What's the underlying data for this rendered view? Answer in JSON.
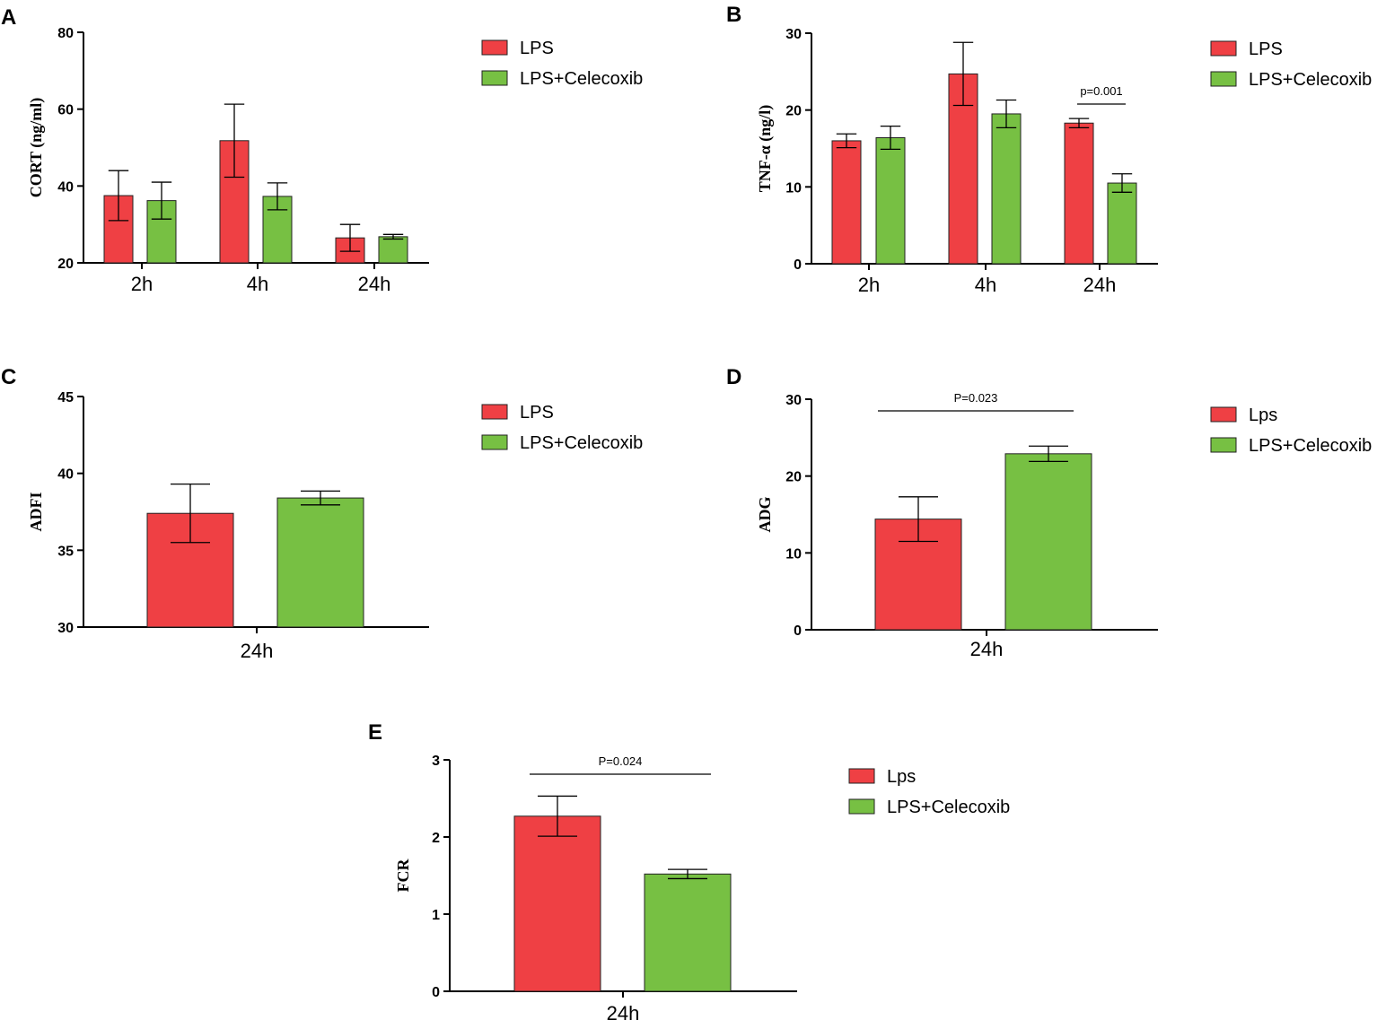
{
  "colors": {
    "lps": "#ef4044",
    "celecoxib": "#77c043"
  },
  "chart_data": [
    {
      "id": "A",
      "type": "bar",
      "panel_label": "A",
      "title": "",
      "xlabel": "",
      "ylabel": "CORT (ng/ml)",
      "ylim": [
        20,
        80
      ],
      "yticks": [
        "20",
        "40",
        "60",
        "80"
      ],
      "categories": [
        "2h",
        "4h",
        "24h"
      ],
      "series": [
        {
          "name": "LPS",
          "values": [
            37.5,
            51.8,
            26.5
          ],
          "errors": [
            6.5,
            9.5,
            3.5
          ]
        },
        {
          "name": "LPS+Celecoxib",
          "values": [
            36.2,
            37.3,
            26.8
          ],
          "errors": [
            4.8,
            3.5,
            0.6
          ]
        }
      ],
      "annotations": [],
      "legend": [
        "LPS",
        "LPS+Celecoxib"
      ]
    },
    {
      "id": "B",
      "type": "bar",
      "panel_label": "B",
      "title": "",
      "xlabel": "",
      "ylabel": "TNF-α (ng/l)",
      "ylim": [
        0,
        30
      ],
      "yticks": [
        "0",
        "10",
        "20",
        "30"
      ],
      "categories": [
        "2h",
        "4h",
        "24h"
      ],
      "series": [
        {
          "name": "LPS",
          "values": [
            16.0,
            24.7,
            18.3
          ],
          "errors": [
            0.9,
            4.1,
            0.6
          ]
        },
        {
          "name": "LPS+Celecoxib",
          "values": [
            16.4,
            19.5,
            10.5
          ],
          "errors": [
            1.5,
            1.8,
            1.2
          ]
        }
      ],
      "annotations": [
        {
          "text": "p=0.001",
          "category": 2
        }
      ],
      "legend": [
        "LPS",
        "LPS+Celecoxib"
      ]
    },
    {
      "id": "C",
      "type": "bar",
      "panel_label": "C",
      "title": "",
      "xlabel": "",
      "ylabel": "ADFI",
      "ylim": [
        30,
        45
      ],
      "yticks": [
        "30",
        "35",
        "40",
        "45"
      ],
      "categories": [
        "24h"
      ],
      "series": [
        {
          "name": "LPS",
          "values": [
            37.4
          ],
          "errors": [
            1.9
          ]
        },
        {
          "name": "LPS+Celecoxib",
          "values": [
            38.4
          ],
          "errors": [
            0.45
          ]
        }
      ],
      "annotations": [],
      "legend": [
        "LPS",
        "LPS+Celecoxib"
      ]
    },
    {
      "id": "D",
      "type": "bar",
      "panel_label": "D",
      "title": "",
      "xlabel": "",
      "ylabel": "ADG",
      "ylim": [
        0,
        30
      ],
      "yticks": [
        "0",
        "10",
        "20",
        "30"
      ],
      "categories": [
        "24h"
      ],
      "series": [
        {
          "name": "Lps",
          "values": [
            14.4
          ],
          "errors": [
            2.9
          ]
        },
        {
          "name": "LPS+Celecoxib",
          "values": [
            22.9
          ],
          "errors": [
            1.0
          ]
        }
      ],
      "annotations": [
        {
          "text": "P=0.023",
          "category": 0
        }
      ],
      "legend": [
        "Lps",
        "LPS+Celecoxib"
      ]
    },
    {
      "id": "E",
      "type": "bar",
      "panel_label": "E",
      "title": "",
      "xlabel": "",
      "ylabel": "FCR",
      "ylim": [
        0,
        3
      ],
      "yticks": [
        "0",
        "1",
        "2",
        "3"
      ],
      "categories": [
        "24h"
      ],
      "series": [
        {
          "name": "Lps",
          "values": [
            2.27
          ],
          "errors": [
            0.26
          ]
        },
        {
          "name": "LPS+Celecoxib",
          "values": [
            1.52
          ],
          "errors": [
            0.06
          ]
        }
      ],
      "annotations": [
        {
          "text": "P=0.024",
          "category": 0
        }
      ],
      "legend": [
        "Lps",
        "LPS+Celecoxib"
      ]
    }
  ]
}
